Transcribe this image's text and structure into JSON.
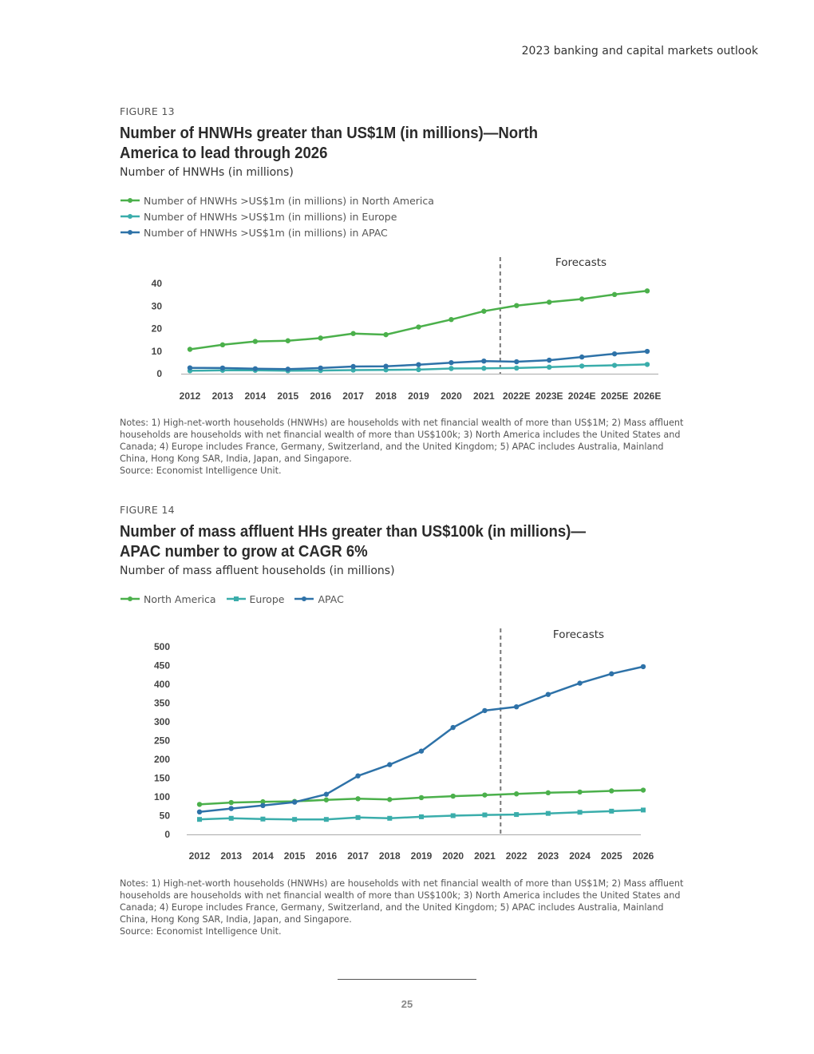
{
  "header": {
    "title": "2023 banking and capital markets outlook"
  },
  "page_number": "25",
  "colors": {
    "north_america": "#4bb04b",
    "europe": "#3aadab",
    "apac": "#2e72a8",
    "axis": "#aaaaaa",
    "divider": "#777777"
  },
  "figures": [
    {
      "label": "FIGURE 13",
      "title": "Number of HNWHs greater than US$1M (in millions)—North America to lead through 2026",
      "subtitle": "Number of HNWHs (in millions)",
      "legend": [
        "Number of HNWHs >US$1m (in millions) in North America",
        "Number of HNWHs >US$1m (in millions) in Europe",
        "Number of HNWHs >US$1m (in millions) in APAC"
      ],
      "forecast_label": "Forecasts",
      "notes": [
        "Notes: 1) High-net-worth households (HNWHs) are households with net financial wealth of more than US$1M; 2) Mass affluent households are households with net financial wealth of more than US$100k; 3) North America includes the United States and Canada; 4) Europe includes France, Germany, Switzerland, and the United Kingdom; 5) APAC includes Australia, Mainland China, Hong Kong SAR, India, Japan, and Singapore.",
        "Source: Economist Intelligence Unit."
      ]
    },
    {
      "label": "FIGURE 14",
      "title": "Number of mass affluent HHs greater than US$100k (in millions)—APAC number to grow at CAGR 6%",
      "subtitle": "Number of mass affluent households (in millions)",
      "legend": [
        "North America",
        "Europe",
        "APAC"
      ],
      "forecast_label": "Forecasts",
      "notes": [
        "Notes: 1) High-net-worth households (HNWHs) are households with net financial wealth of more than US$1M; 2) Mass affluent households are households with net financial wealth of more than US$100k; 3) North America includes the United States and Canada; 4) Europe includes France, Germany, Switzerland, and the United Kingdom; 5) APAC includes Australia, Mainland China, Hong Kong SAR, India, Japan, and Singapore.",
        "Source: Economist Intelligence Unit."
      ]
    }
  ],
  "chart_data": [
    {
      "type": "line",
      "title": "Number of HNWHs greater than US$1M (in millions)—North America to lead through 2026",
      "ylabel": "Number of HNWHs (in millions)",
      "categories": [
        "2012",
        "2013",
        "2014",
        "2015",
        "2016",
        "2017",
        "2018",
        "2019",
        "2020",
        "2021",
        "2022E",
        "2023E",
        "2024E",
        "2025E",
        "2026E"
      ],
      "yticks": [
        0,
        10,
        20,
        30,
        40
      ],
      "ylim": [
        0,
        40
      ],
      "forecast_after": "2021",
      "series": [
        {
          "name": "Number of HNWHs >US$1m (in millions) in North America",
          "key": "north_america",
          "values": [
            10.8,
            12.8,
            14.3,
            14.6,
            15.8,
            17.8,
            17.3,
            20.7,
            24.0,
            27.7,
            30.2,
            31.7,
            33.1,
            35.1,
            36.7
          ]
        },
        {
          "name": "Number of HNWHs >US$1m (in millions) in Europe",
          "key": "europe",
          "values": [
            1.3,
            1.5,
            1.5,
            1.3,
            1.4,
            1.6,
            1.7,
            1.8,
            2.3,
            2.4,
            2.5,
            2.9,
            3.4,
            3.7,
            4.1
          ]
        },
        {
          "name": "Number of HNWHs >US$1m (in millions) in APAC",
          "key": "apac",
          "values": [
            2.6,
            2.5,
            2.2,
            2.0,
            2.5,
            3.2,
            3.3,
            4.0,
            4.9,
            5.6,
            5.3,
            6.0,
            7.4,
            8.8,
            9.9
          ]
        }
      ]
    },
    {
      "type": "line",
      "title": "Number of mass affluent HHs greater than US$100k (in millions)—APAC number to grow at CAGR 6%",
      "ylabel": "Number of mass affluent households (in millions)",
      "categories": [
        "2012",
        "2013",
        "2014",
        "2015",
        "2016",
        "2017",
        "2018",
        "2019",
        "2020",
        "2021",
        "2022",
        "2023",
        "2024",
        "2025",
        "2026"
      ],
      "yticks": [
        0,
        50,
        100,
        150,
        200,
        250,
        300,
        350,
        400,
        450,
        500
      ],
      "ylim": [
        0,
        500
      ],
      "forecast_after": "2021",
      "series": [
        {
          "name": "North America",
          "key": "north_america",
          "values": [
            80,
            85,
            87,
            88,
            92,
            95,
            93,
            98,
            102,
            105,
            108,
            111,
            113,
            116,
            118
          ]
        },
        {
          "name": "Europe",
          "key": "europe",
          "values": [
            40,
            43,
            41,
            40,
            40,
            45,
            43,
            47,
            50,
            52,
            53,
            56,
            59,
            62,
            65
          ]
        },
        {
          "name": "APAC",
          "key": "apac",
          "values": [
            60,
            69,
            77,
            86,
            107,
            156,
            186,
            222,
            285,
            330,
            340,
            373,
            403,
            428,
            447
          ]
        }
      ]
    }
  ]
}
